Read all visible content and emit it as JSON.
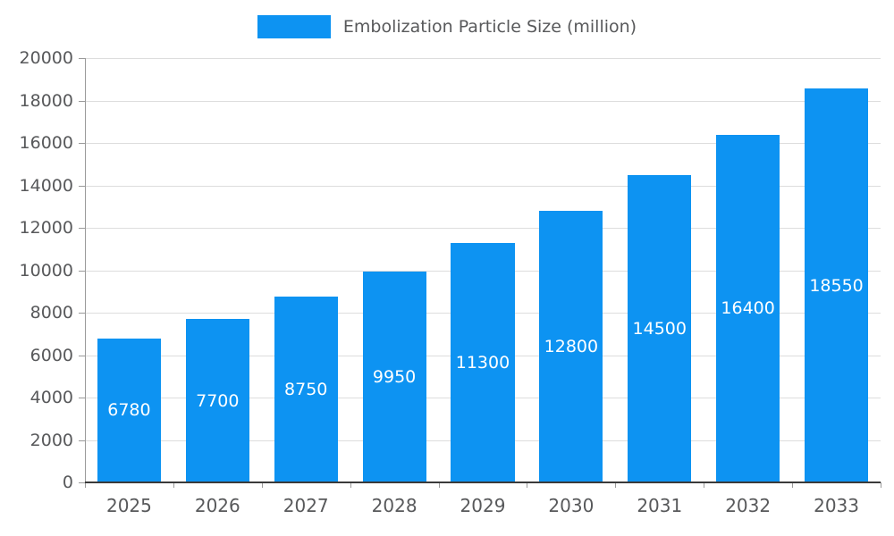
{
  "legend": {
    "label": "Embolization Particle Size (million)",
    "swatch_color": "#0d93f2"
  },
  "colors": {
    "bar": "#0d93f2",
    "value_label": "#ffffff",
    "axis_text": "#58595b",
    "grid_line": "#dddddd",
    "y_axis_line": "#9a9a9a",
    "x_axis_line": "#3a3a3a",
    "background": "#ffffff"
  },
  "chart_data": {
    "type": "bar",
    "title": "Embolization Particle Size (million)",
    "categories": [
      "2025",
      "2026",
      "2027",
      "2028",
      "2029",
      "2030",
      "2031",
      "2032",
      "2033"
    ],
    "values": [
      6780,
      7700,
      8750,
      9950,
      11300,
      12800,
      14500,
      16400,
      18550
    ],
    "value_labels": [
      "6780",
      "7700",
      "8750",
      "9950",
      "11300",
      "12800",
      "14500",
      "16400",
      "18550"
    ],
    "xlabel": "",
    "ylabel": "",
    "ylim": [
      0,
      20000
    ],
    "ytick_step": 2000,
    "ytick_labels": [
      "0",
      "2000",
      "4000",
      "6000",
      "8000",
      "10000",
      "12000",
      "14000",
      "16000",
      "18000",
      "20000"
    ],
    "grid": true,
    "legend_position": "top-center",
    "bar_color": "#0d93f2",
    "value_label_position": "inside-center"
  }
}
